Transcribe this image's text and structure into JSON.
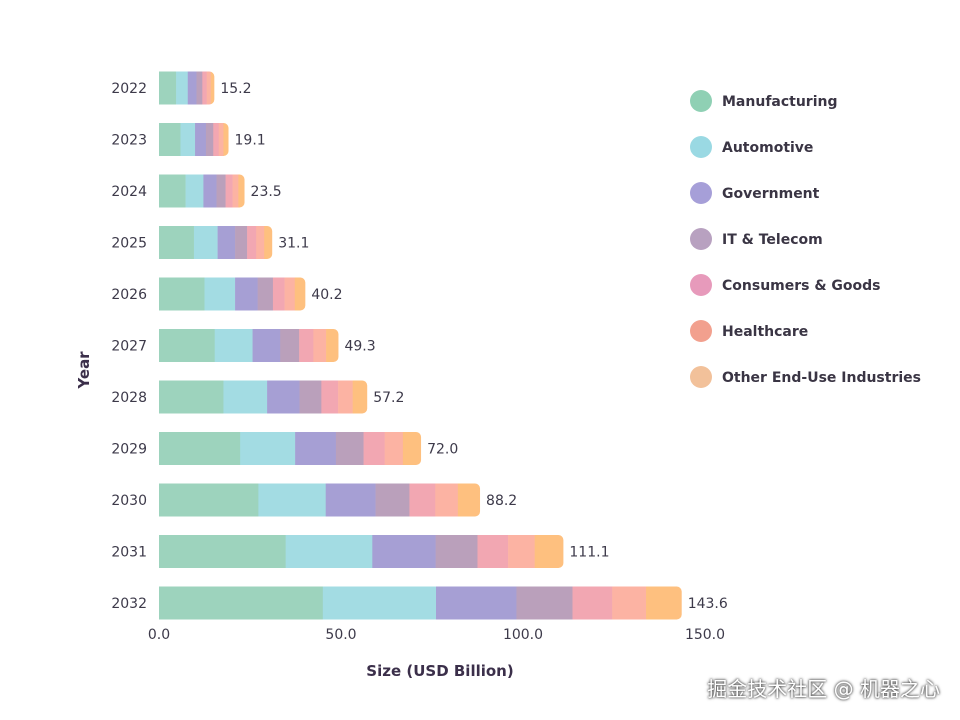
{
  "chart_data": {
    "type": "bar",
    "orientation": "horizontal",
    "stacked": true,
    "title": "",
    "xlabel": "Size (USD Billion)",
    "ylabel": "Year",
    "xlim": [
      0,
      150
    ],
    "xticks": [
      "0.0",
      "50.0",
      "100.0",
      "150.0"
    ],
    "categories": [
      "2022",
      "2023",
      "2024",
      "2025",
      "2026",
      "2027",
      "2028",
      "2029",
      "2030",
      "2031",
      "2032"
    ],
    "totals": [
      "15.2",
      "19.1",
      "23.5",
      "31.1",
      "40.2",
      "49.3",
      "57.2",
      "72.0",
      "88.2",
      "111.1",
      "143.6"
    ],
    "series": [
      {
        "name": "Manufacturing",
        "color": "#9dd3bd",
        "legend_color": "#8fd0b4",
        "values": [
          4.7,
          5.9,
          7.3,
          9.6,
          12.5,
          15.3,
          17.7,
          22.3,
          27.3,
          34.8,
          45.0
        ]
      },
      {
        "name": "Automotive",
        "color": "#a3dce3",
        "legend_color": "#9ad9e3",
        "values": [
          3.2,
          4.0,
          4.9,
          6.5,
          8.4,
          10.4,
          12.0,
          15.1,
          18.5,
          23.8,
          31.1
        ]
      },
      {
        "name": "Government",
        "color": "#a69fd4",
        "legend_color": "#a69fd8",
        "values": [
          2.4,
          3.0,
          3.6,
          4.8,
          6.2,
          7.6,
          8.9,
          11.2,
          13.7,
          17.4,
          22.1
        ]
      },
      {
        "name": "IT & Telecom",
        "color": "#baa0bb",
        "legend_color": "#b8a1c0",
        "values": [
          1.6,
          2.0,
          2.5,
          3.3,
          4.2,
          5.2,
          6.0,
          7.6,
          9.3,
          11.5,
          15.4
        ]
      },
      {
        "name": "Consumers & Goods",
        "color": "#f2a7b2",
        "legend_color": "#e79abb",
        "values": [
          1.2,
          1.5,
          1.9,
          2.5,
          3.2,
          3.9,
          4.6,
          5.8,
          7.1,
          8.4,
          10.9
        ]
      },
      {
        "name": "Healthcare",
        "color": "#fcb3a3",
        "legend_color": "#f2a08e",
        "values": [
          1.1,
          1.3,
          1.6,
          2.2,
          2.8,
          3.5,
          4.0,
          5.0,
          6.2,
          7.3,
          9.3
        ]
      },
      {
        "name": "Other End-Use Industries",
        "color": "#fec07f",
        "legend_color": "#f2c19a",
        "values": [
          1.0,
          1.4,
          1.7,
          2.2,
          2.9,
          3.4,
          4.0,
          5.0,
          6.1,
          7.9,
          9.8
        ]
      }
    ],
    "legend_position": "right",
    "grid": false
  },
  "watermark": "掘金技术社区 @ 机器之心"
}
